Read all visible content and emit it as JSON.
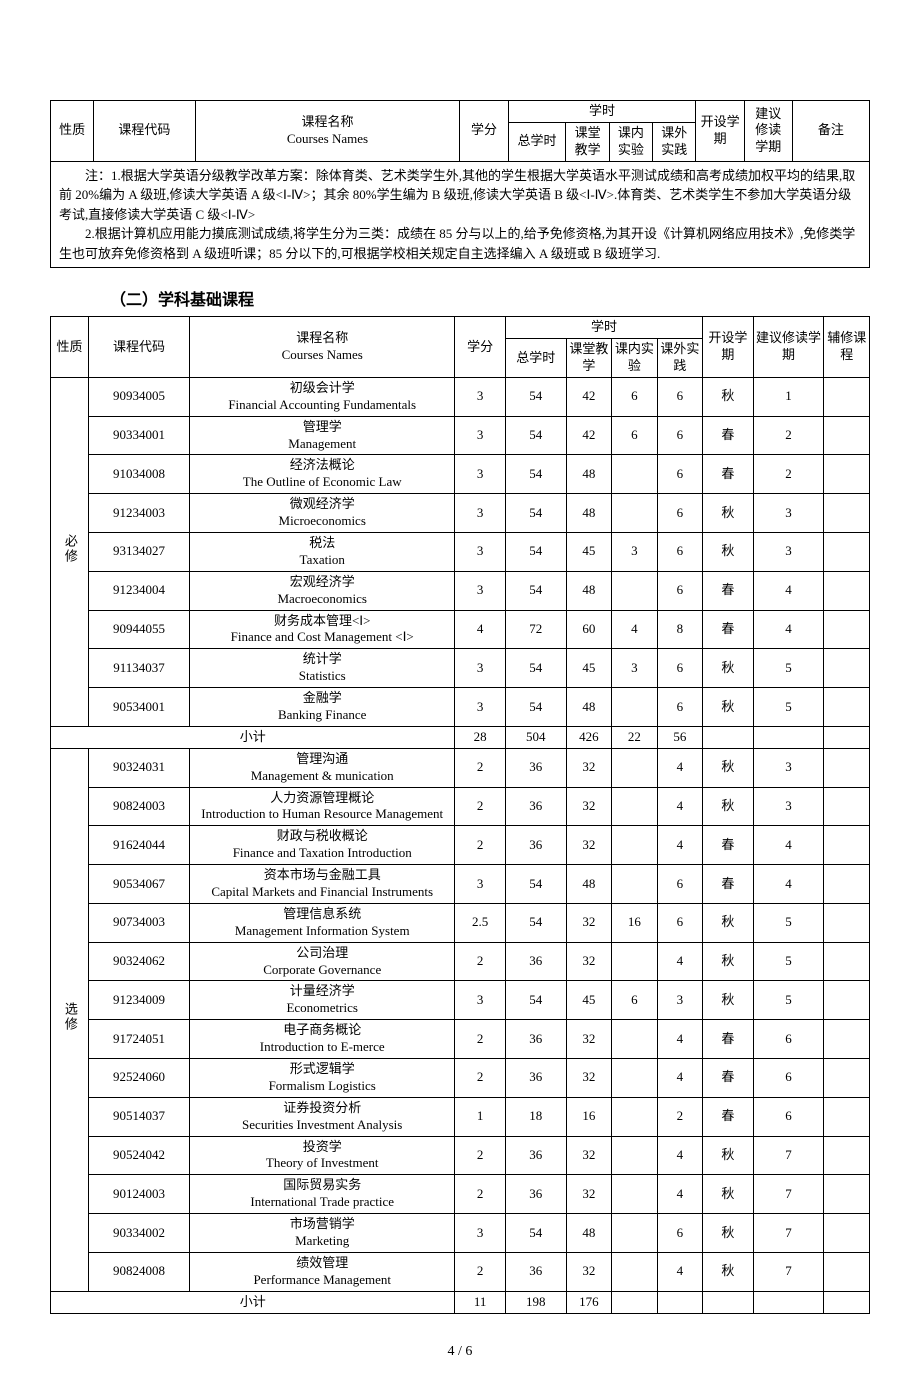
{
  "table1": {
    "headers": {
      "nature": "性质",
      "code": "课程代码",
      "name_cn": "课程名称",
      "name_en": "Courses Names",
      "credit": "学分",
      "hours": "学时",
      "total_hours": "总学时",
      "class_teach": "课堂教学",
      "in_lab": "课内实验",
      "out_practice": "课外实践",
      "open_term": "开设学期",
      "sugg_term_l1": "建议",
      "sugg_term_l2": "修读",
      "sugg_term_l3": "学期",
      "remark": "备注"
    },
    "note": "　　注：1.根据大学英语分级教学改革方案：除体育类、艺术类学生外,其他的学生根据大学英语水平测试成绩和高考成绩加权平均的结果,取前 20%编为 A 级班,修读大学英语 A 级<Ⅰ-Ⅳ>；其余 80%学生编为 B 级班,修读大学英语 B 级<Ⅰ-Ⅳ>.体育类、艺术类学生不参加大学英语分级考试,直接修读大学英语 C 级<Ⅰ-Ⅳ>\n　　2.根据计算机应用能力摸底测试成绩,将学生分为三类：成绩在 85 分与以上的,给予免修资格,为其开设《计算机网络应用技术》,免修类学生也可放弃免修资格到 A 级班听课；85 分以下的,可根据学校相关规定自主选择编入 A 级班或 B 级班学习."
  },
  "section2_title": "（二）学科基础课程",
  "table2": {
    "headers": {
      "nature": "性质",
      "code": "课程代码",
      "name_cn": "课程名称",
      "name_en": "Courses Names",
      "credit": "学分",
      "hours": "学时",
      "total_hours": "总学时",
      "class_teach": "课堂教学",
      "in_lab": "课内实验",
      "out_practice": "课外实践",
      "open_term": "开设学期",
      "sugg_term": "建议修读学期",
      "minor": "辅修课程"
    },
    "group1_label": "必修",
    "group1_rows": [
      {
        "code": "90934005",
        "name": "初级会计学\nFinancial Accounting Fundamentals",
        "credit": "3",
        "total": "54",
        "teach": "42",
        "lab": "6",
        "out": "6",
        "term": "秋",
        "sugg": "1",
        "minor": ""
      },
      {
        "code": "90334001",
        "name": "管理学\nManagement",
        "credit": "3",
        "total": "54",
        "teach": "42",
        "lab": "6",
        "out": "6",
        "term": "春",
        "sugg": "2",
        "minor": ""
      },
      {
        "code": "91034008",
        "name": "经济法概论\nThe Outline of Economic Law",
        "credit": "3",
        "total": "54",
        "teach": "48",
        "lab": "",
        "out": "6",
        "term": "春",
        "sugg": "2",
        "minor": ""
      },
      {
        "code": "91234003",
        "name": "微观经济学\nMicroeconomics",
        "credit": "3",
        "total": "54",
        "teach": "48",
        "lab": "",
        "out": "6",
        "term": "秋",
        "sugg": "3",
        "minor": ""
      },
      {
        "code": "93134027",
        "name": "税法\nTaxation",
        "credit": "3",
        "total": "54",
        "teach": "45",
        "lab": "3",
        "out": "6",
        "term": "秋",
        "sugg": "3",
        "minor": ""
      },
      {
        "code": "91234004",
        "name": "宏观经济学\nMacroeconomics",
        "credit": "3",
        "total": "54",
        "teach": "48",
        "lab": "",
        "out": "6",
        "term": "春",
        "sugg": "4",
        "minor": ""
      },
      {
        "code": "90944055",
        "name": "财务成本管理<Ⅰ>\nFinance and Cost Management <Ⅰ>",
        "credit": "4",
        "total": "72",
        "teach": "60",
        "lab": "4",
        "out": "8",
        "term": "春",
        "sugg": "4",
        "minor": ""
      },
      {
        "code": "91134037",
        "name": "统计学\nStatistics",
        "credit": "3",
        "total": "54",
        "teach": "45",
        "lab": "3",
        "out": "6",
        "term": "秋",
        "sugg": "5",
        "minor": ""
      },
      {
        "code": "90534001",
        "name": "金融学\nBanking Finance",
        "credit": "3",
        "total": "54",
        "teach": "48",
        "lab": "",
        "out": "6",
        "term": "秋",
        "sugg": "5",
        "minor": ""
      }
    ],
    "group1_subtotal": {
      "label": "小计",
      "credit": "28",
      "total": "504",
      "teach": "426",
      "lab": "22",
      "out": "56",
      "term": "",
      "sugg": "",
      "minor": ""
    },
    "group2_label": "选修",
    "group2_rows": [
      {
        "code": "90324031",
        "name": "管理沟通\nManagement & munication",
        "credit": "2",
        "total": "36",
        "teach": "32",
        "lab": "",
        "out": "4",
        "term": "秋",
        "sugg": "3",
        "minor": ""
      },
      {
        "code": "90824003",
        "name": "人力资源管理概论\nIntroduction to Human Resource Management",
        "credit": "2",
        "total": "36",
        "teach": "32",
        "lab": "",
        "out": "4",
        "term": "秋",
        "sugg": "3",
        "minor": ""
      },
      {
        "code": "91624044",
        "name": "财政与税收概论\nFinance and Taxation Introduction",
        "credit": "2",
        "total": "36",
        "teach": "32",
        "lab": "",
        "out": "4",
        "term": "春",
        "sugg": "4",
        "minor": ""
      },
      {
        "code": "90534067",
        "name": "资本市场与金融工具\nCapital Markets and Financial Instruments",
        "credit": "3",
        "total": "54",
        "teach": "48",
        "lab": "",
        "out": "6",
        "term": "春",
        "sugg": "4",
        "minor": ""
      },
      {
        "code": "90734003",
        "name": "管理信息系统\nManagement Information System",
        "credit": "2.5",
        "total": "54",
        "teach": "32",
        "lab": "16",
        "out": "6",
        "term": "秋",
        "sugg": "5",
        "minor": ""
      },
      {
        "code": "90324062",
        "name": "公司治理\nCorporate Governance",
        "credit": "2",
        "total": "36",
        "teach": "32",
        "lab": "",
        "out": "4",
        "term": "秋",
        "sugg": "5",
        "minor": ""
      },
      {
        "code": "91234009",
        "name": "计量经济学\nEconometrics",
        "credit": "3",
        "total": "54",
        "teach": "45",
        "lab": "6",
        "out": "3",
        "term": "秋",
        "sugg": "5",
        "minor": ""
      },
      {
        "code": "91724051",
        "name": "电子商务概论\nIntroduction to E-merce",
        "credit": "2",
        "total": "36",
        "teach": "32",
        "lab": "",
        "out": "4",
        "term": "春",
        "sugg": "6",
        "minor": ""
      },
      {
        "code": "92524060",
        "name": "形式逻辑学\nFormalism Logistics",
        "credit": "2",
        "total": "36",
        "teach": "32",
        "lab": "",
        "out": "4",
        "term": "春",
        "sugg": "6",
        "minor": ""
      },
      {
        "code": "90514037",
        "name": "证券投资分析\nSecurities Investment Analysis",
        "credit": "1",
        "total": "18",
        "teach": "16",
        "lab": "",
        "out": "2",
        "term": "春",
        "sugg": "6",
        "minor": ""
      },
      {
        "code": "90524042",
        "name": "投资学\nTheory of Investment",
        "credit": "2",
        "total": "36",
        "teach": "32",
        "lab": "",
        "out": "4",
        "term": "秋",
        "sugg": "7",
        "minor": ""
      },
      {
        "code": "90124003",
        "name": "国际贸易实务\nInternational Trade practice",
        "credit": "2",
        "total": "36",
        "teach": "32",
        "lab": "",
        "out": "4",
        "term": "秋",
        "sugg": "7",
        "minor": ""
      },
      {
        "code": "90334002",
        "name": "市场营销学\nMarketing",
        "credit": "3",
        "total": "54",
        "teach": "48",
        "lab": "",
        "out": "6",
        "term": "秋",
        "sugg": "7",
        "minor": ""
      },
      {
        "code": "90824008",
        "name": "绩效管理\nPerformance Management",
        "credit": "2",
        "total": "36",
        "teach": "32",
        "lab": "",
        "out": "4",
        "term": "秋",
        "sugg": "7",
        "minor": ""
      }
    ],
    "group2_subtotal": {
      "label": "小计",
      "credit": "11",
      "total": "198",
      "teach": "176",
      "lab": "",
      "out": "",
      "term": "",
      "sugg": "",
      "minor": ""
    }
  },
  "page_number": "4 / 6",
  "colwidths_t1": {
    "nature": 36,
    "code": 84,
    "name": 220,
    "credit": 40,
    "total": 48,
    "teach": 36,
    "lab": 36,
    "out": 36,
    "open": 40,
    "sugg": 40,
    "remark": 64
  },
  "colwidths_t2": {
    "nature": 30,
    "code": 80,
    "name": 210,
    "credit": 40,
    "total": 48,
    "teach": 36,
    "lab": 36,
    "out": 36,
    "open": 40,
    "sugg": 56,
    "minor": 36
  }
}
